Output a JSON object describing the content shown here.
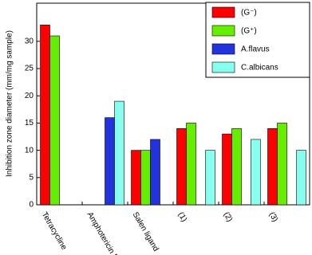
{
  "chart_data": {
    "type": "bar",
    "y_label": "Inhibition zone diameter (mm/mg sample)",
    "categories": [
      "Tetracycline",
      "Amphotericin B",
      "Salen ligand",
      "(1)",
      "(2)",
      "(3)"
    ],
    "series": [
      {
        "name": "(G⁻)",
        "color": "#ff0000",
        "values": [
          33,
          null,
          10,
          14,
          13,
          14
        ]
      },
      {
        "name": "(G⁺)",
        "color": "#66ee00",
        "values": [
          31,
          null,
          10,
          15,
          14,
          15
        ]
      },
      {
        "name": "A.flavus",
        "color": "#2233dd",
        "values": [
          null,
          16,
          12,
          null,
          null,
          null
        ]
      },
      {
        "name": "C.albicans",
        "color": "#88ffee",
        "values": [
          null,
          19,
          null,
          10,
          12,
          10
        ]
      }
    ],
    "ylim": [
      0,
      37
    ],
    "yticks": [
      0,
      5,
      10,
      15,
      20,
      25,
      30
    ],
    "legend": "top-right"
  }
}
